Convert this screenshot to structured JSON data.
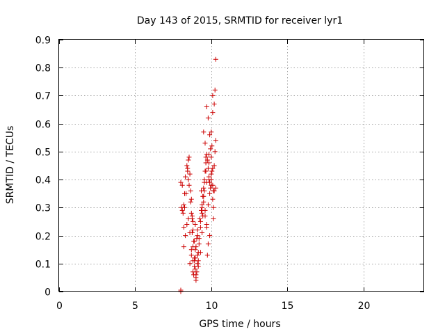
{
  "chart_data": {
    "type": "scatter",
    "title": "Day 143 of 2015, SRMTID for receiver lyr1",
    "xlabel": "GPS time / hours",
    "ylabel": "SRMTID / TECUs",
    "xlim": [
      0,
      24
    ],
    "ylim": [
      0,
      0.9
    ],
    "xticks": [
      0,
      5,
      10,
      15,
      20
    ],
    "xtick_labels": [
      "0",
      "5",
      "10",
      "15",
      "20"
    ],
    "yticks": [
      0,
      0.1,
      0.2,
      0.3,
      0.4,
      0.5,
      0.6,
      0.7,
      0.8,
      0.9
    ],
    "ytick_labels": [
      "0",
      "0.1",
      "0.2",
      "0.3",
      "0.4",
      "0.5",
      "0.6",
      "0.7",
      "0.8",
      "0.9"
    ],
    "grid": true,
    "marker": "+",
    "color": "#cc0000",
    "series": [
      {
        "name": "SRMTID",
        "x": [
          8.0,
          8.0,
          8.0,
          8.05,
          8.1,
          8.15,
          8.2,
          8.25,
          8.1,
          8.3,
          8.4,
          8.45,
          8.5,
          8.55,
          8.6,
          8.65,
          8.7,
          8.75,
          8.8,
          8.85,
          8.9,
          8.95,
          9.0,
          9.05,
          9.1,
          9.15,
          9.2,
          9.3,
          9.35,
          9.4,
          9.45,
          9.5,
          9.55,
          9.6,
          9.65,
          9.7,
          9.75,
          9.8,
          9.85,
          9.9,
          9.95,
          10.0,
          10.05,
          10.1,
          10.15,
          10.2,
          10.25,
          10.3,
          10.2,
          10.1,
          10.0,
          9.9,
          9.8,
          9.7,
          9.6,
          9.5,
          8.2,
          8.3,
          8.4,
          8.5,
          8.6,
          8.7,
          8.8,
          8.9,
          9.0,
          9.1,
          9.2,
          9.3,
          9.4,
          9.5,
          9.6,
          9.7,
          9.8,
          9.9,
          10.0,
          10.1,
          8.2,
          8.35,
          8.5,
          8.65,
          8.8,
          8.95,
          9.1,
          9.25,
          9.4,
          9.55,
          9.7,
          9.85,
          10.0,
          10.15,
          10.3,
          8.6,
          8.7,
          8.8,
          8.9,
          9.0,
          9.05,
          9.1,
          9.15,
          9.0,
          8.95,
          8.9,
          8.85,
          8.8,
          8.75,
          8.7,
          9.3,
          9.4,
          9.5,
          9.6,
          9.7,
          9.8,
          9.9,
          10.0,
          10.1,
          10.2,
          10.25,
          10.3,
          10.1,
          9.95,
          9.85,
          10.05,
          10.15,
          9.75,
          9.65,
          9.55,
          8.25,
          8.45,
          8.55,
          8.75,
          8.95,
          9.15,
          9.35,
          9.45,
          9.65,
          9.85
        ],
        "y": [
          0.0,
          0.005,
          0.39,
          0.3,
          0.29,
          0.28,
          0.31,
          0.3,
          0.38,
          0.41,
          0.45,
          0.44,
          0.47,
          0.48,
          0.42,
          0.36,
          0.33,
          0.27,
          0.22,
          0.18,
          0.12,
          0.08,
          0.05,
          0.07,
          0.1,
          0.14,
          0.19,
          0.25,
          0.29,
          0.3,
          0.34,
          0.37,
          0.4,
          0.43,
          0.46,
          0.49,
          0.47,
          0.44,
          0.41,
          0.39,
          0.37,
          0.4,
          0.43,
          0.38,
          0.36,
          0.45,
          0.5,
          0.54,
          0.67,
          0.64,
          0.57,
          0.56,
          0.62,
          0.66,
          0.53,
          0.57,
          0.16,
          0.2,
          0.24,
          0.26,
          0.21,
          0.15,
          0.11,
          0.09,
          0.06,
          0.13,
          0.17,
          0.23,
          0.28,
          0.32,
          0.27,
          0.24,
          0.31,
          0.35,
          0.42,
          0.33,
          0.23,
          0.35,
          0.4,
          0.32,
          0.16,
          0.12,
          0.2,
          0.26,
          0.31,
          0.36,
          0.39,
          0.46,
          0.48,
          0.3,
          0.37,
          0.1,
          0.13,
          0.07,
          0.11,
          0.16,
          0.19,
          0.22,
          0.09,
          0.04,
          0.15,
          0.18,
          0.06,
          0.25,
          0.21,
          0.28,
          0.14,
          0.21,
          0.34,
          0.29,
          0.23,
          0.17,
          0.2,
          0.38,
          0.44,
          0.36,
          0.72,
          0.83,
          0.7,
          0.51,
          0.49,
          0.52,
          0.26,
          0.13,
          0.43,
          0.39,
          0.35,
          0.43,
          0.38,
          0.26,
          0.24,
          0.11,
          0.36,
          0.27,
          0.48,
          0.4
        ]
      }
    ]
  }
}
